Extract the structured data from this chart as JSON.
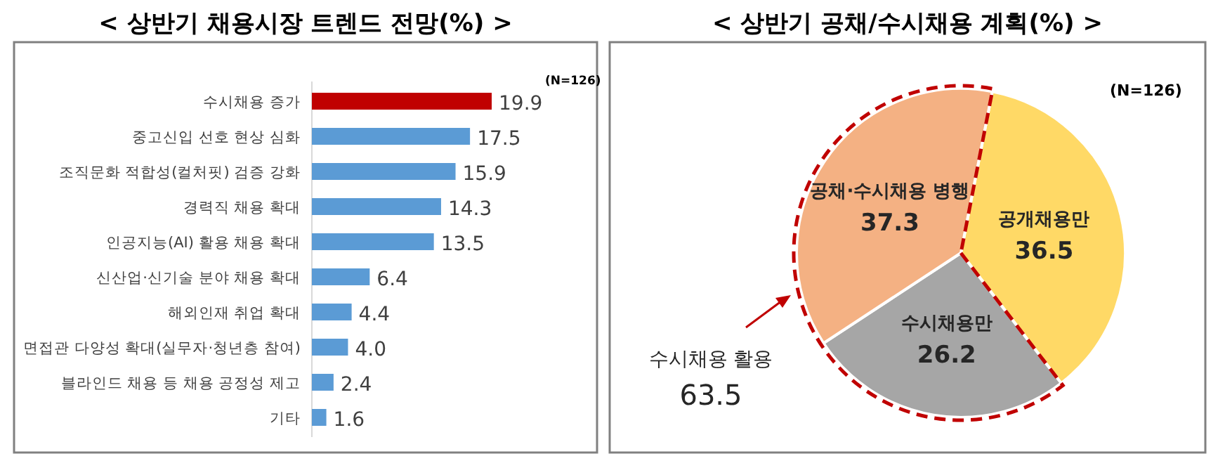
{
  "chart_data": [
    {
      "type": "bar",
      "orientation": "horizontal",
      "title": "< 상반기 채용시장 트렌드 전망(%) >",
      "annotations": [
        "(N=126)"
      ],
      "categories": [
        "수시채용 증가",
        "중고신입 선호 현상 심화",
        "조직문화 적합성(컬처핏) 검증 강화",
        "경력직 채용 확대",
        "인공지능(AI) 활용 채용 확대",
        "신산업·신기술 분야 채용 확대",
        "해외인재 취업 확대",
        "면접관 다양성 확대(실무자·청년층 참여)",
        "블라인드 채용 등 채용 공정성 제고",
        "기타"
      ],
      "values": [
        19.9,
        17.5,
        15.9,
        14.3,
        13.5,
        6.4,
        4.4,
        4.0,
        2.4,
        1.6
      ],
      "colors": [
        "#c00000",
        "#5b9bd5",
        "#5b9bd5",
        "#5b9bd5",
        "#5b9bd5",
        "#5b9bd5",
        "#5b9bd5",
        "#5b9bd5",
        "#5b9bd5",
        "#5b9bd5"
      ],
      "value_labels": [
        "19.9",
        "17.5",
        "15.9",
        "14.3",
        "13.5",
        "6.4",
        "4.4",
        "4.0",
        "2.4",
        "1.6"
      ]
    },
    {
      "type": "pie",
      "title": "< 상반기 공채/수시채용 계획(%) >",
      "annotations": [
        "(N=126)",
        {
          "text": "수시채용 활용\n63.5"
        }
      ],
      "categories": [
        "공개채용만",
        "수시채용만",
        "공채·수시채용 병행"
      ],
      "values": [
        36.5,
        26.2,
        37.3
      ],
      "colors": [
        "#ffd966",
        "#a6a6a6",
        "#f4b183"
      ],
      "value_labels": [
        "36.5",
        "26.2",
        "37.3"
      ]
    }
  ]
}
